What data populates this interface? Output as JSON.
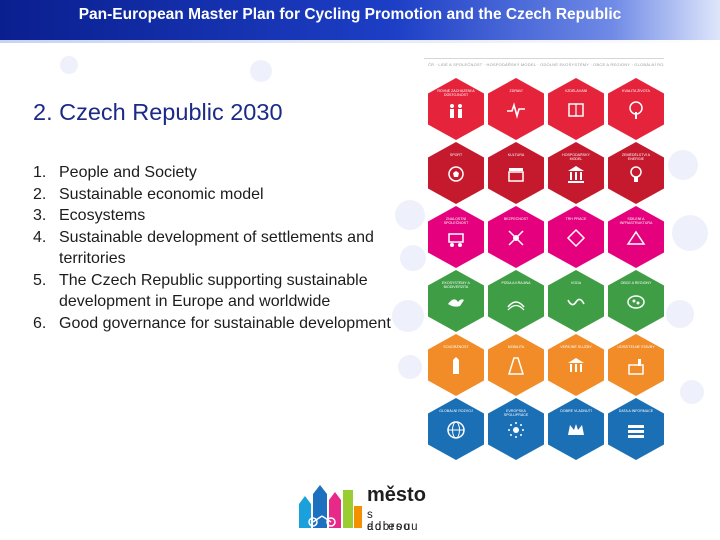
{
  "header": {
    "title": "Pan-European Master Plan for Cycling Promotion and the Czech Republic"
  },
  "slide": {
    "title": "2. Czech Republic 2030",
    "goals": [
      {
        "number": "1.",
        "text": "People and Society"
      },
      {
        "number": "2.",
        "text": "Sustainable economic model"
      },
      {
        "number": "3.",
        "text": "Ecosystems"
      },
      {
        "number": "4.",
        "text": "Sustainable development of settlements and territories"
      },
      {
        "number": "5.",
        "text": "The Czech Republic supporting sustainable development in Europe and worldwide"
      },
      {
        "number": "6.",
        "text": "Good governance for sustainable development"
      }
    ]
  },
  "sdg_panel": {
    "heading": "ČR · LIDÉ A SPOLEČNOST · HOSPODÁŘSKÝ MODEL · ODOLNÉ EKOSYSTÉMY · OBCE A REGIONY · GLOBÁLNÍ ROZVOJ · DOBRÉ VLÁDNUTÍ",
    "rows": [
      {
        "color": "#e5243b",
        "tiles": [
          {
            "label": "ROVNÉ ZACHÁZENÍ A DŮSTOJNOST",
            "icon": "people-icon"
          },
          {
            "label": "ZDRAVÍ",
            "icon": "heartbeat-icon"
          },
          {
            "label": "VZDĚLÁVÁNÍ",
            "icon": "education-icon"
          },
          {
            "label": "KVALITA ŽIVOTA",
            "icon": "tree-icon"
          }
        ]
      },
      {
        "color": "#c5192d",
        "tiles": [
          {
            "label": "SPORT",
            "icon": "ball-icon"
          },
          {
            "label": "KULTURA",
            "icon": "clapper-icon"
          },
          {
            "label": "HOSPODÁŘSKÝ MODEL",
            "icon": "building-icon"
          },
          {
            "label": "ZEMĚDĚLSTVÍ A ENERGIE",
            "icon": "bulb-icon"
          }
        ]
      },
      {
        "color": "#e5007d",
        "tiles": [
          {
            "label": "ZNALOSTNÍ SPOLEČNOST",
            "icon": "cart-icon"
          },
          {
            "label": "BEZPEČNOST",
            "icon": "network-icon"
          },
          {
            "label": "TRH PRÁCE",
            "icon": "diamond-icon"
          },
          {
            "label": "SDÍLENÍ A INFRASTRUKTURA",
            "icon": "tools-icon"
          }
        ]
      },
      {
        "color": "#3f9e45",
        "tiles": [
          {
            "label": "EKOSYSTÉMY A BIODIVERZITA",
            "icon": "bird-icon"
          },
          {
            "label": "PŮDA A KRAJINA",
            "icon": "field-icon"
          },
          {
            "label": "VODA",
            "icon": "river-icon"
          },
          {
            "label": "OBCE A REGIONY",
            "icon": "map-icon"
          }
        ]
      },
      {
        "color": "#f28c28",
        "tiles": [
          {
            "label": "SOUDRŽNOST",
            "icon": "tower-icon"
          },
          {
            "label": "MOBILITA",
            "icon": "road-icon"
          },
          {
            "label": "VEŘEJNÉ SLUŽBY",
            "icon": "temple-icon"
          },
          {
            "label": "UDRŽITELNÉ STAVBY",
            "icon": "factory-icon"
          }
        ]
      },
      {
        "color": "#1b6fb5",
        "tiles": [
          {
            "label": "GLOBÁLNÍ ROZVOJ",
            "icon": "globe-icon"
          },
          {
            "label": "EVROPSKÁ SPOLUPRÁCE",
            "icon": "eu-icon"
          },
          {
            "label": "DOBRÉ VLÁDNUTÍ",
            "icon": "crown-icon"
          },
          {
            "label": "DATA A INFORMACE",
            "icon": "data-icon"
          }
        ]
      }
    ]
  },
  "logo": {
    "line1": "město",
    "line2": "s dobrou",
    "line3": "adresou"
  }
}
